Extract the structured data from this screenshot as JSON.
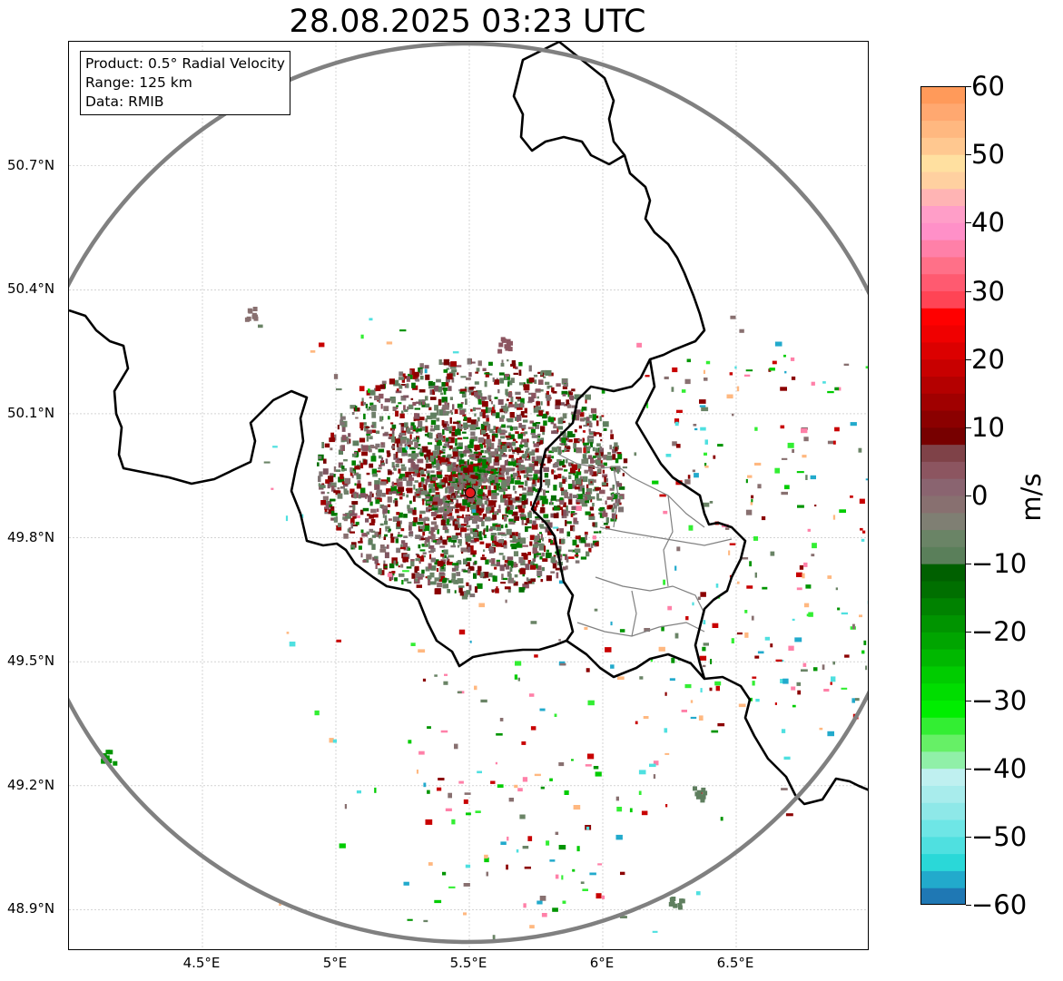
{
  "title": "28.08.2025 03:23 UTC",
  "info_box": {
    "product": "Product: 0.5° Radial Velocity",
    "range": "Range: 125 km",
    "data": "Data: RMIB"
  },
  "map": {
    "lon_range": [
      4.0,
      7.0
    ],
    "lat_range": [
      48.8,
      51.0
    ],
    "lat_labels": [
      "50.7°N",
      "50.4°N",
      "50.1°N",
      "49.8°N",
      "49.5°N",
      "49.2°N",
      "48.9°N"
    ],
    "lat_values": [
      50.7,
      50.4,
      50.1,
      49.8,
      49.5,
      49.2,
      48.9
    ],
    "lon_labels": [
      "4.5°E",
      "5°E",
      "5.5°E",
      "6°E",
      "6.5°E"
    ],
    "lon_values": [
      4.5,
      5.0,
      5.5,
      6.0,
      6.5
    ],
    "radar_site": {
      "lon": 5.505,
      "lat": 49.915
    },
    "range_circle_km": 125,
    "gridlines": true,
    "range_ring_color": "#808080",
    "border_color": "#000000",
    "admin_border_color": "#808080",
    "radar_marker_color": "#e41a1c"
  },
  "colorbar": {
    "unit": "m/s",
    "vmin": -60,
    "vmax": 60,
    "tick_labels": [
      "60",
      "50",
      "40",
      "30",
      "20",
      "10",
      "0",
      "−10",
      "−20",
      "−30",
      "−40",
      "−50",
      "−60"
    ],
    "tick_values": [
      60,
      50,
      40,
      30,
      20,
      10,
      0,
      -10,
      -20,
      -30,
      -40,
      -50,
      -60
    ],
    "colors": [
      "#1f78b4",
      "#22aacc",
      "#2ad8d8",
      "#4fe0e0",
      "#6ee6e6",
      "#8ee8e8",
      "#a8ecec",
      "#bff0f0",
      "#90f0a8",
      "#66f066",
      "#33ee33",
      "#00ee00",
      "#00dd00",
      "#00cc00",
      "#00b800",
      "#00a500",
      "#009400",
      "#008200",
      "#006f00",
      "#006000",
      "#5a7f5a",
      "#6a8466",
      "#7f7f73",
      "#887070",
      "#8a6470",
      "#8c5560",
      "#7f4248",
      "#770000",
      "#8b0000",
      "#a00000",
      "#b40000",
      "#c80000",
      "#dc0000",
      "#f00000",
      "#ff0000",
      "#ff4455",
      "#ff5a70",
      "#ff7088",
      "#ff80a8",
      "#ff90c8",
      "#ff9ec8",
      "#ffb4b4",
      "#ffd0a0",
      "#ffe0a0",
      "#ffc890",
      "#ffb880",
      "#ffa870",
      "#ff9a5a"
    ]
  }
}
